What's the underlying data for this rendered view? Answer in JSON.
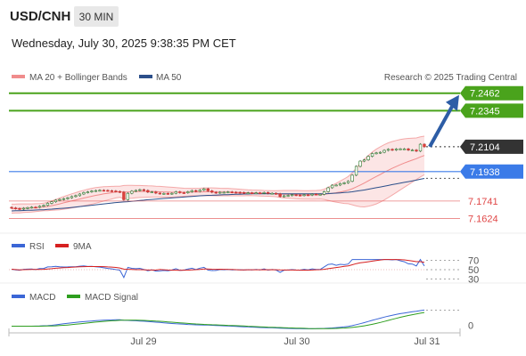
{
  "header": {
    "symbol": "USD/CNH",
    "timeframe": "30 MIN",
    "datetime": "Wednesday, July 30, 2025 9:38:35 PM CET"
  },
  "legend": {
    "ma20": "MA 20 + Bollinger Bands",
    "ma50": "MA 50",
    "ma20_color": "#f08c8c",
    "ma50_color": "#2c4f8a",
    "copyright": "Research © 2025 Trading Central"
  },
  "chart_data": [
    {
      "type": "candlestick",
      "panel": "price",
      "ylim": [
        7.155,
        7.252
      ],
      "levels": [
        {
          "value": "7.2462",
          "color": "#4aa31c",
          "style": "resistance"
        },
        {
          "value": "7.2345",
          "color": "#4aa31c",
          "style": "resistance"
        },
        {
          "value": "7.2104",
          "color": "#333333",
          "style": "current"
        },
        {
          "value": "7.1938",
          "color": "#3b7be8",
          "style": "pivot"
        },
        {
          "value": "7.1741",
          "color": "#e04848",
          "style": "support"
        },
        {
          "value": "7.1624",
          "color": "#e04848",
          "style": "support"
        }
      ],
      "close_series": [
        7.1695,
        7.1691,
        7.1688,
        7.1693,
        7.1697,
        7.17,
        7.1699,
        7.1706,
        7.1712,
        7.1726,
        7.1736,
        7.1747,
        7.1752,
        7.1757,
        7.1763,
        7.1771,
        7.1777,
        7.1788,
        7.1798,
        7.1802,
        7.1808,
        7.1811,
        7.1813,
        7.1812,
        7.181,
        7.1808,
        7.1805,
        7.1801,
        7.175,
        7.1793,
        7.1807,
        7.1812,
        7.1817,
        7.1812,
        7.1801,
        7.1802,
        7.1794,
        7.1791,
        7.1792,
        7.179,
        7.1793,
        7.1803,
        7.1797,
        7.1796,
        7.1803,
        7.1811,
        7.1806,
        7.1814,
        7.1823,
        7.1809,
        7.18,
        7.1796,
        7.18,
        7.18,
        7.1802,
        7.18,
        7.1799,
        7.1798,
        7.1795,
        7.1796,
        7.1794,
        7.1796,
        7.1794,
        7.1798,
        7.1792,
        7.1793,
        7.1789,
        7.1771,
        7.1776,
        7.1779,
        7.1783,
        7.1781,
        7.1779,
        7.1783,
        7.1781,
        7.1787,
        7.1786,
        7.1786,
        7.1804,
        7.183,
        7.1847,
        7.1848,
        7.1858,
        7.1863,
        7.1873,
        7.1914,
        7.1973,
        7.2008,
        7.2016,
        7.204,
        7.2059,
        7.2063,
        7.2067,
        7.208,
        7.2087,
        7.2082,
        7.2089,
        7.209,
        7.209,
        7.2082,
        7.2082,
        7.2075,
        7.2121,
        7.2104
      ],
      "ma20": [
        7.169,
        7.1691,
        7.1692,
        7.1693,
        7.1694,
        7.1695,
        7.1697,
        7.1699,
        7.1702,
        7.1705,
        7.171,
        7.1716,
        7.1722,
        7.1729,
        7.1735,
        7.1742,
        7.1748,
        7.1755,
        7.1761,
        7.1767,
        7.1773,
        7.1779,
        7.1784,
        7.1789,
        7.1793,
        7.1797,
        7.1801,
        7.1803,
        7.1801,
        7.1802,
        7.1803,
        7.1804,
        7.1805,
        7.1805,
        7.1805,
        7.1805,
        7.1804,
        7.1803,
        7.1802,
        7.1801,
        7.18,
        7.18,
        7.18,
        7.18,
        7.18,
        7.1801,
        7.1801,
        7.1802,
        7.1803,
        7.1803,
        7.1803,
        7.1802,
        7.1802,
        7.1801,
        7.1801,
        7.18,
        7.1799,
        7.1798,
        7.1797,
        7.1797,
        7.1796,
        7.1795,
        7.1794,
        7.1793,
        7.1792,
        7.1791,
        7.179,
        7.1788,
        7.1787,
        7.1786,
        7.1785,
        7.1784,
        7.1783,
        7.1782,
        7.1782,
        7.1782,
        7.1783,
        7.1784,
        7.1786,
        7.1789,
        7.1793,
        7.1797,
        7.1802,
        7.1807,
        7.1814,
        7.1823,
        7.1835,
        7.1848,
        7.1861,
        7.1876,
        7.1891,
        7.1905,
        7.1919,
        7.1933,
        7.1947,
        7.196,
        7.1972,
        7.1984,
        7.1995,
        7.2005,
        7.2015,
        7.2024,
        7.2036,
        7.2046
      ],
      "bb_upper": [
        7.172,
        7.1721,
        7.1722,
        7.1722,
        7.1722,
        7.1722,
        7.1723,
        7.1724,
        7.1727,
        7.1733,
        7.1741,
        7.1751,
        7.1761,
        7.1771,
        7.178,
        7.1789,
        7.1797,
        7.1806,
        7.1813,
        7.182,
        7.1826,
        7.1831,
        7.1834,
        7.1837,
        7.1838,
        7.1839,
        7.184,
        7.184,
        7.1845,
        7.1846,
        7.1846,
        7.1845,
        7.1845,
        7.1844,
        7.1843,
        7.1842,
        7.184,
        7.1839,
        7.1837,
        7.1835,
        7.1833,
        7.1831,
        7.1829,
        7.1827,
        7.1826,
        7.1826,
        7.1826,
        7.1827,
        7.1829,
        7.1829,
        7.1829,
        7.1828,
        7.1827,
        7.1826,
        7.1826,
        7.1824,
        7.1822,
        7.182,
        7.1818,
        7.1816,
        7.1815,
        7.1814,
        7.1813,
        7.1812,
        7.1811,
        7.181,
        7.181,
        7.1811,
        7.1812,
        7.1812,
        7.1812,
        7.1812,
        7.1811,
        7.181,
        7.181,
        7.1811,
        7.1812,
        7.1813,
        7.182,
        7.1832,
        7.1847,
        7.186,
        7.1875,
        7.1889,
        7.1905,
        7.193,
        7.1962,
        7.1993,
        7.202,
        7.2046,
        7.2069,
        7.2088,
        7.2104,
        7.2118,
        7.213,
        7.2139,
        7.2146,
        7.2152,
        7.2157,
        7.216,
        7.2162,
        7.2163,
        7.217,
        7.2175
      ],
      "bb_lower": [
        7.166,
        7.1661,
        7.1662,
        7.1664,
        7.1666,
        7.1668,
        7.1671,
        7.1674,
        7.1677,
        7.1677,
        7.1679,
        7.1681,
        7.1683,
        7.1687,
        7.169,
        7.1695,
        7.1699,
        7.1704,
        7.1709,
        7.1714,
        7.172,
        7.1727,
        7.1734,
        7.1741,
        7.1748,
        7.1755,
        7.1762,
        7.1766,
        7.1757,
        7.1758,
        7.176,
        7.1763,
        7.1765,
        7.1766,
        7.1767,
        7.1768,
        7.1768,
        7.1767,
        7.1767,
        7.1767,
        7.1767,
        7.1769,
        7.1771,
        7.1773,
        7.1774,
        7.1776,
        7.1776,
        7.1777,
        7.1777,
        7.1777,
        7.1777,
        7.1776,
        7.1777,
        7.1776,
        7.1776,
        7.1776,
        7.1776,
        7.1776,
        7.1776,
        7.1778,
        7.1777,
        7.1776,
        7.1775,
        7.1774,
        7.1773,
        7.1772,
        7.177,
        7.1765,
        7.1762,
        7.176,
        7.1758,
        7.1756,
        7.1755,
        7.1754,
        7.1754,
        7.1753,
        7.1754,
        7.1755,
        7.1752,
        7.1746,
        7.1739,
        7.1734,
        7.1729,
        7.1725,
        7.1723,
        7.1716,
        7.1708,
        7.1703,
        7.1702,
        7.1706,
        7.1713,
        7.1722,
        7.1734,
        7.1748,
        7.1764,
        7.1781,
        7.1798,
        7.1816,
        7.1833,
        7.185,
        7.1868,
        7.1885,
        7.1902,
        7.1917
      ],
      "ma50": [
        7.1675,
        7.1676,
        7.1677,
        7.1678,
        7.1679,
        7.168,
        7.1681,
        7.1682,
        7.1683,
        7.1685,
        7.1687,
        7.1689,
        7.1691,
        7.1693,
        7.1695,
        7.1698,
        7.1701,
        7.1704,
        7.1707,
        7.171,
        7.1713,
        7.1716,
        7.1719,
        7.1722,
        7.1725,
        7.1728,
        7.1731,
        7.1733,
        7.1735,
        7.1737,
        7.174,
        7.1742,
        7.1745,
        7.1747,
        7.175,
        7.1752,
        7.1754,
        7.1756,
        7.1758,
        7.176,
        7.1762,
        7.1764,
        7.1766,
        7.1768,
        7.177,
        7.1772,
        7.1774,
        7.1776,
        7.1778,
        7.1779,
        7.178,
        7.1781,
        7.1782,
        7.1783,
        7.1784,
        7.1785,
        7.1786,
        7.1787,
        7.1788,
        7.1788,
        7.1789,
        7.1789,
        7.179,
        7.179,
        7.179,
        7.179,
        7.179,
        7.179,
        7.179,
        7.179,
        7.179,
        7.179,
        7.1789,
        7.1789,
        7.1789,
        7.1789,
        7.1789,
        7.1789,
        7.179,
        7.1791,
        7.1793,
        7.1794,
        7.1796,
        7.1798,
        7.18,
        7.1803,
        7.1807,
        7.1811,
        7.1815,
        7.182,
        7.1825,
        7.183,
        7.1835,
        7.184,
        7.1845,
        7.1851,
        7.1856,
        7.1861,
        7.1866,
        7.1871,
        7.1876,
        7.1881,
        7.1887,
        7.1892
      ]
    },
    {
      "type": "line",
      "panel": "rsi",
      "series": [
        {
          "name": "RSI",
          "color": "#3b66d6"
        },
        {
          "name": "9MA",
          "color": "#d62020"
        }
      ],
      "yticks": [
        "70",
        "50",
        "30"
      ],
      "ylim": [
        25,
        75
      ]
    },
    {
      "type": "line",
      "panel": "macd",
      "series": [
        {
          "name": "MACD",
          "color": "#3b66d6"
        },
        {
          "name": "MACD Signal",
          "color": "#2e9e1f"
        }
      ],
      "yticks": [
        "0"
      ]
    }
  ],
  "x_axis": {
    "ticks": [
      "Jul 29",
      "Jul 30",
      "Jul 31"
    ]
  }
}
